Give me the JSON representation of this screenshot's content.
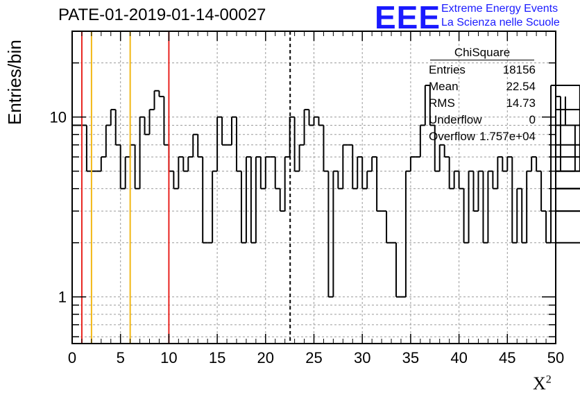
{
  "title": "PATE-01-2019-01-14-00027",
  "logo": {
    "mark": "EEE",
    "line1": "Extreme Energy Events",
    "line2": "La Scienza nelle Scuole",
    "color": "#1a1aff"
  },
  "stats_box": {
    "name": "ChiSquare",
    "rows": [
      {
        "label": "Entries",
        "value": "18156"
      },
      {
        "label": "Mean",
        "value": "22.54"
      },
      {
        "label": "RMS",
        "value": "14.73"
      },
      {
        "label": "Underflow",
        "value": "0"
      },
      {
        "label": "Overflow",
        "value": "1.757e+04"
      }
    ]
  },
  "chart_data": {
    "type": "histogram",
    "title": "PATE-01-2019-01-14-00027",
    "ylabel": "Entries/bin",
    "xlabel": "X",
    "xlabel_superscript": "2",
    "xlim": [
      0,
      50
    ],
    "ylim": [
      0.55,
      30
    ],
    "yscale": "log",
    "grid": true,
    "bin_width": 0.5,
    "x_ticks": [
      "0",
      "5",
      "10",
      "15",
      "20",
      "25",
      "30",
      "35",
      "40",
      "45",
      "50"
    ],
    "y_ticks": [
      {
        "value": 1,
        "label": "1"
      },
      {
        "value": 10,
        "label": "10"
      }
    ],
    "values": [
      9,
      9,
      9,
      5,
      5,
      5,
      6,
      9,
      11,
      7,
      4,
      6,
      7,
      4,
      10,
      8,
      11,
      14,
      13,
      7,
      5,
      4,
      6,
      5,
      6,
      8,
      6,
      2,
      2,
      5,
      10,
      7,
      7,
      10,
      5,
      2,
      6,
      2,
      6,
      4,
      6,
      6,
      4,
      3,
      6,
      10,
      5,
      7,
      11,
      9,
      10,
      9,
      5,
      1,
      5,
      4,
      7,
      7,
      4,
      6,
      4,
      5,
      6,
      3,
      3,
      2,
      2,
      1,
      1,
      5,
      6,
      6,
      9,
      15,
      9,
      5,
      7,
      6,
      4,
      5,
      4,
      2,
      5,
      3,
      5,
      2,
      5,
      4,
      6,
      5,
      6,
      2,
      4,
      2,
      5,
      6,
      5,
      3,
      2,
      15,
      5,
      13,
      9,
      9,
      5,
      15,
      9,
      4,
      7,
      5,
      3,
      6,
      11,
      5,
      2,
      4,
      3,
      4
    ],
    "vertical_lines": [
      {
        "x": 1,
        "color": "#e8231f",
        "style": "solid"
      },
      {
        "x": 2,
        "color": "#f2b713",
        "style": "solid"
      },
      {
        "x": 6,
        "color": "#f2b713",
        "style": "solid"
      },
      {
        "x": 10,
        "color": "#e8231f",
        "style": "solid"
      },
      {
        "x": 22.54,
        "color": "#000000",
        "style": "dashed"
      }
    ]
  }
}
